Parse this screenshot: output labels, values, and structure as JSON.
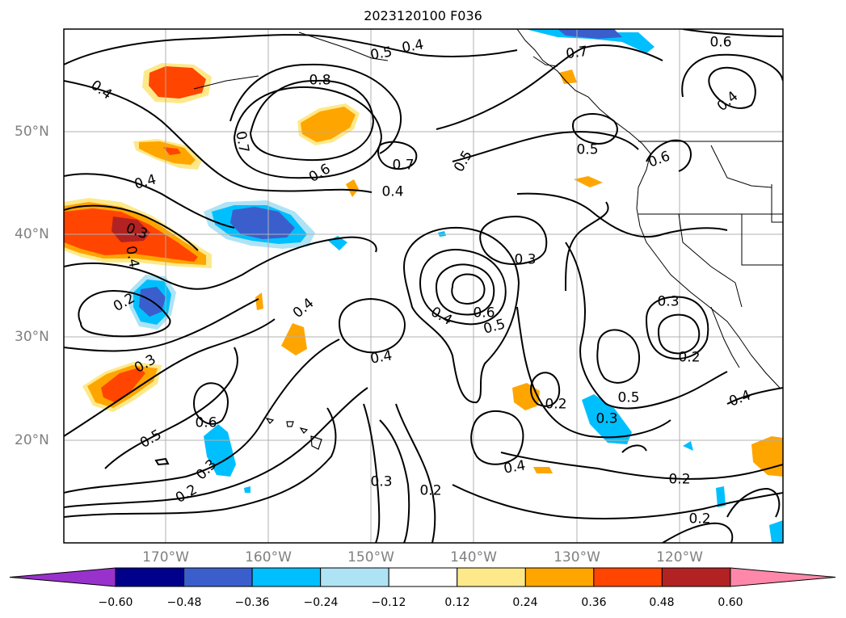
{
  "title": "2023120100 F036",
  "lat_labels": [
    "50°N",
    "40°N",
    "30°N",
    "20°N"
  ],
  "lon_labels": [
    "170°W",
    "160°W",
    "150°W",
    "140°W",
    "130°W",
    "120°W"
  ],
  "colorbar": {
    "ticks": [
      "−0.60",
      "−0.48",
      "−0.36",
      "−0.24",
      "−0.12",
      "0.12",
      "0.24",
      "0.36",
      "0.48",
      "0.60"
    ],
    "colors": [
      "#9932cc",
      "#00008b",
      "#3a5fcd",
      "#00bfff",
      "#aee3f5",
      "#ffffff",
      "#fde98a",
      "#ffa500",
      "#ff4500",
      "#b22222",
      "#ff88aa"
    ]
  },
  "contour_labels": [
    "0.4",
    "0.5",
    "0.4",
    "0.7",
    "0.6",
    "0.8",
    "0.4",
    "0.7",
    "0.6",
    "0.7",
    "0.5",
    "0.5",
    "0.4",
    "0.6",
    "0.4",
    "0.3",
    "0.4",
    "0.3",
    "0.2",
    "0.3",
    "0.4",
    "0.6",
    "0.5",
    "0.4",
    "0.3",
    "0.4",
    "0.6",
    "0.5",
    "0.3",
    "0.2",
    "0.2",
    "0.3",
    "0.5",
    "0.3",
    "0.2",
    "0.4",
    "0.4",
    "0.2",
    "0.2",
    "0.2"
  ]
}
